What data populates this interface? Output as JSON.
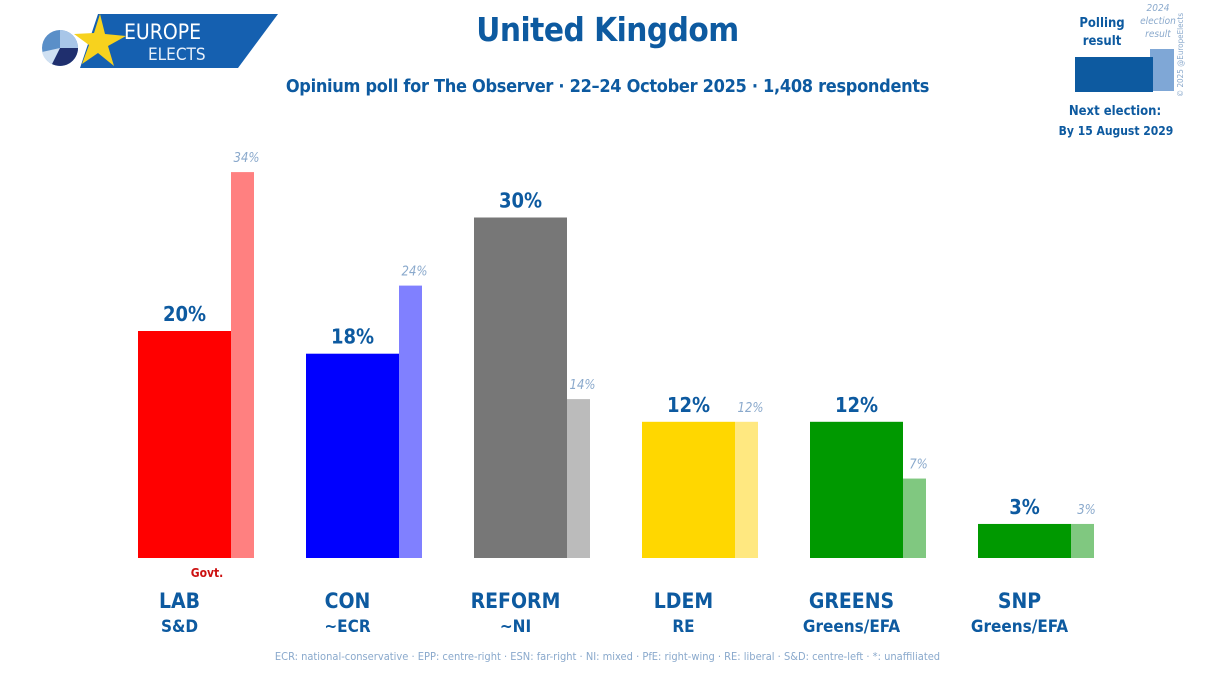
{
  "logo": {
    "line1": "EUROPE",
    "line2": "ELECTS"
  },
  "header": {
    "title": "United Kingdom",
    "subtitle": "Opinium poll for The Observer · 22–24 October 2025 · 1,408 respondents"
  },
  "legend": {
    "poll_label": "Polling result",
    "prev_label": "2024 election result",
    "next_election_label": "Next election:",
    "next_election_date": "By 15 August 2029",
    "copyright": "© 2025 @EuropeElects",
    "poll_color": "#0d5aa0",
    "prev_color": "#7fa7d6"
  },
  "footnote": "ECR: national-conservative · EPP: centre-right · ESN: far-right · NI: mixed · PfE: right-wing · RE: liberal · S&D: centre-left · *: unaffiliated",
  "chart_data": {
    "type": "bar",
    "title": "United Kingdom",
    "subtitle": "Opinium poll for The Observer · 22–24 October 2025 · 1,408 respondents",
    "categories": [
      "LAB",
      "CON",
      "REFORM",
      "LDEM",
      "GREENS",
      "SNP"
    ],
    "groups": [
      "S&D",
      "~ECR",
      "~NI",
      "RE",
      "Greens/EFA",
      "Greens/EFA"
    ],
    "series": [
      {
        "name": "Polling result",
        "values": [
          20,
          18,
          30,
          12,
          12,
          3
        ],
        "labels": [
          "20%",
          "18%",
          "30%",
          "12%",
          "12%",
          "3%"
        ]
      },
      {
        "name": "2024 election result",
        "values": [
          34,
          24,
          14,
          12,
          7,
          3
        ],
        "labels": [
          "34%",
          "24%",
          "14%",
          "12%",
          "7%",
          "3%"
        ]
      }
    ],
    "colors": [
      "#ff0000",
      "#0000ff",
      "#777777",
      "#ffd700",
      "#009900",
      "#009900"
    ],
    "prev_colors": [
      "#ff8080",
      "#8080ff",
      "#bbbbbb",
      "#ffe880",
      "#80c880",
      "#80c880"
    ],
    "annotations": [
      {
        "category": "LAB",
        "text": "Govt."
      }
    ],
    "ylim": [
      0,
      36
    ],
    "grid": false,
    "xlabel": "",
    "ylabel": ""
  }
}
